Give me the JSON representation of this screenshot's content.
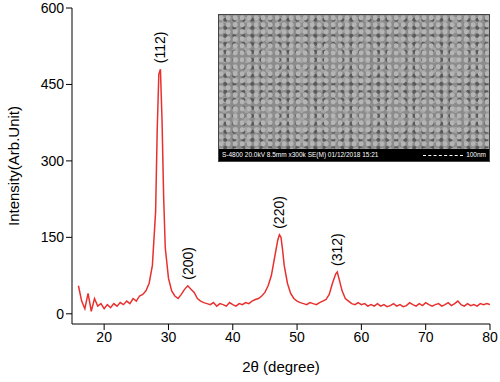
{
  "chart_data": {
    "type": "line",
    "x_label": "2θ (degree)",
    "y_label": "Intensity(Arb.Unit)",
    "color": "#e8312f",
    "grid": false,
    "xlim": [
      15,
      80
    ],
    "xticks": [
      20,
      30,
      40,
      50,
      60,
      70,
      80
    ],
    "ylim": [
      -20,
      600
    ],
    "yticks": [
      0,
      150,
      300,
      450,
      600
    ],
    "x": [
      16,
      16.5,
      17,
      17.5,
      18,
      18.5,
      19,
      19.5,
      20,
      20.5,
      21,
      21.5,
      22,
      22.5,
      23,
      23.5,
      24,
      24.5,
      25,
      25.5,
      26,
      26.5,
      27,
      27.5,
      28,
      28.25,
      28.5,
      28.75,
      29,
      29.25,
      29.5,
      30,
      30.5,
      31,
      31.5,
      32,
      32.5,
      33,
      33.5,
      34,
      34.5,
      35,
      35.5,
      36,
      36.5,
      37,
      37.5,
      38,
      38.5,
      39,
      39.5,
      40,
      40.5,
      41,
      41.5,
      42,
      42.5,
      43,
      43.5,
      44,
      44.5,
      45,
      45.5,
      46,
      46.5,
      47,
      47.25,
      47.5,
      47.75,
      48,
      48.5,
      49,
      49.5,
      50,
      50.5,
      51,
      51.5,
      52,
      52.5,
      53,
      53.5,
      54,
      54.5,
      55,
      55.5,
      56,
      56.25,
      56.5,
      57,
      57.5,
      58,
      58.5,
      59,
      59.5,
      60,
      60.5,
      61,
      61.5,
      62,
      62.5,
      63,
      63.5,
      64,
      64.5,
      65,
      65.5,
      66,
      66.5,
      67,
      67.5,
      68,
      68.5,
      69,
      69.5,
      70,
      70.5,
      71,
      71.5,
      72,
      72.5,
      73,
      73.5,
      74,
      74.5,
      75,
      75.5,
      76,
      76.5,
      77,
      77.5,
      78,
      78.5,
      79,
      79.5,
      80
    ],
    "values": [
      55,
      25,
      10,
      40,
      5,
      30,
      15,
      20,
      10,
      18,
      12,
      20,
      15,
      22,
      18,
      25,
      20,
      30,
      25,
      35,
      38,
      45,
      60,
      95,
      200,
      360,
      470,
      480,
      380,
      230,
      130,
      70,
      45,
      35,
      30,
      38,
      48,
      55,
      48,
      42,
      30,
      25,
      22,
      20,
      18,
      22,
      15,
      20,
      18,
      15,
      22,
      18,
      15,
      20,
      18,
      22,
      20,
      25,
      28,
      30,
      35,
      42,
      55,
      75,
      110,
      145,
      155,
      150,
      125,
      95,
      60,
      40,
      30,
      25,
      22,
      20,
      18,
      22,
      20,
      18,
      22,
      25,
      28,
      38,
      60,
      78,
      82,
      70,
      45,
      30,
      25,
      20,
      18,
      22,
      18,
      20,
      15,
      18,
      15,
      20,
      15,
      18,
      14,
      16,
      20,
      15,
      18,
      14,
      16,
      22,
      18,
      15,
      20,
      16,
      22,
      18,
      15,
      18,
      20,
      15,
      18,
      22,
      16,
      20,
      25,
      18,
      15,
      20,
      16,
      18,
      15,
      20,
      18,
      20,
      18
    ],
    "annotations": [
      {
        "text": "(112)",
        "x": 28.75
      },
      {
        "text": "(200)",
        "x": 33
      },
      {
        "text": "(220)",
        "x": 47.25
      },
      {
        "text": "(312)",
        "x": 56.25
      }
    ],
    "inset": {
      "caption": "S-4800 20.0kV 8.5mm x300k SE(M) 01/12/2018 15:21",
      "scale_bar": "100nm"
    }
  }
}
